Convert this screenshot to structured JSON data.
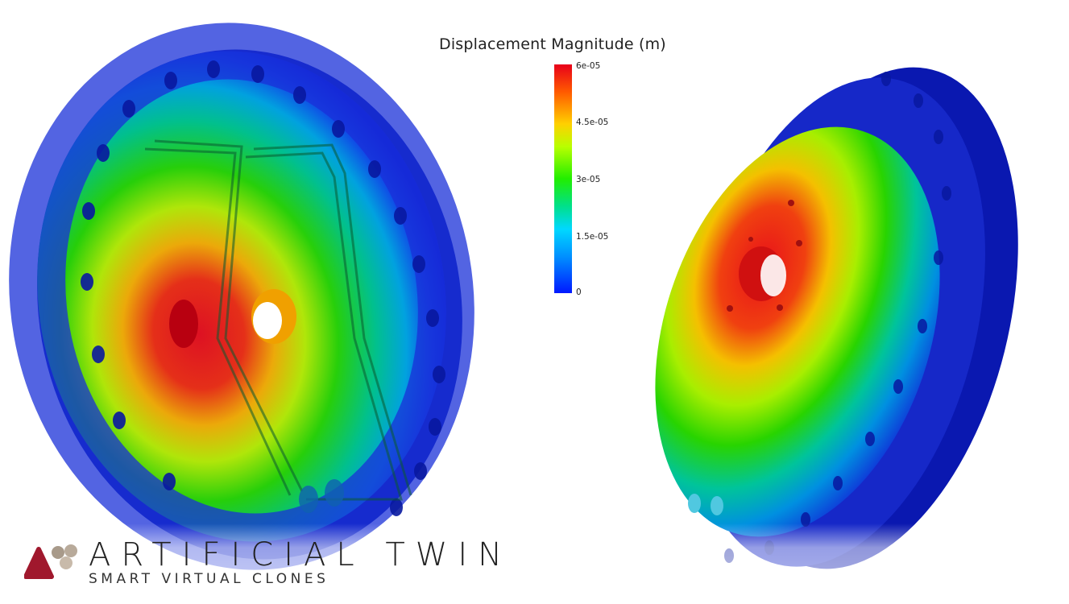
{
  "legend": {
    "title": "Displacement Magnitude (m)",
    "ticks": [
      "6e-05",
      "4.5e-05",
      "3e-05",
      "1.5e-05",
      "0"
    ]
  },
  "brand": {
    "name": "ARTIFICIAL TWIN",
    "tagline": "SMART VIRTUAL CLONES",
    "accent_color": "#a0182d",
    "secondary_color": "#a89a8a"
  },
  "scene": {
    "description_icons": [
      "flange-left-view",
      "flange-right-view"
    ]
  }
}
